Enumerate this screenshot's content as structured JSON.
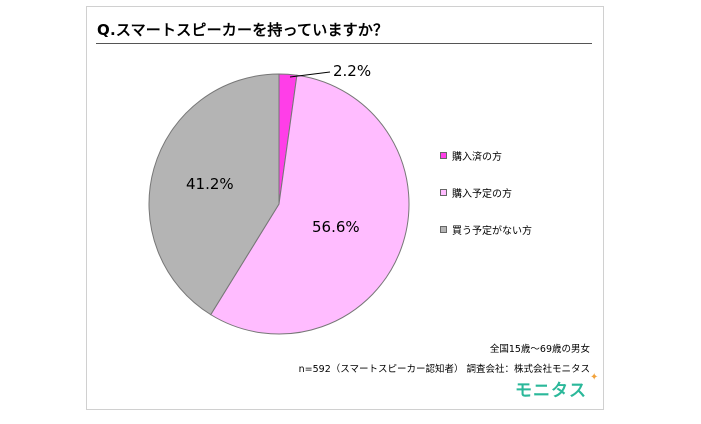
{
  "chart_data": {
    "type": "pie",
    "title": "Q.スマートスピーカーを持っていますか？",
    "slices": [
      {
        "label": "購入済の方",
        "value": 2.2,
        "display": "2.2%",
        "color": "#ff3ee8"
      },
      {
        "label": "購入予定の方",
        "value": 56.6,
        "display": "56.6%",
        "color": "#ffbcff"
      },
      {
        "label": "買う予定がない方",
        "value": 41.2,
        "display": "41.2%",
        "color": "#b4b4b4"
      }
    ],
    "legend": "right"
  },
  "notes": {
    "population": "全国15歳～69歳の男女",
    "sample": "n=592（スマートスピーカー認知者） 調査会社：株式会社モニタス"
  },
  "brand": {
    "name": "モニタス"
  }
}
